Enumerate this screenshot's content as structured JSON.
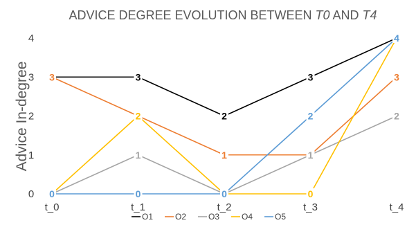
{
  "chart_data": {
    "type": "line",
    "title_prefix": "ADVICE DEGREE EVOLUTION BETWEEN ",
    "title_t0": "T0",
    "title_and": " AND ",
    "title_t4": "T4",
    "xlabel": "",
    "ylabel": "Advice In-degree",
    "categories": [
      "t_0",
      "t_1",
      "t_2",
      "t_3",
      "t_4"
    ],
    "yticks": [
      "0",
      "1",
      "2",
      "3",
      "4"
    ],
    "ylim": [
      0,
      4
    ],
    "grid": false,
    "legend_position": "bottom",
    "series": [
      {
        "name": "O1",
        "color": "#000000",
        "values": [
          3,
          3,
          2,
          3,
          4
        ],
        "labels": [
          "3",
          "3",
          "2",
          "3",
          ""
        ]
      },
      {
        "name": "O2",
        "color": "#ED7D31",
        "values": [
          3,
          2,
          1,
          1,
          3
        ],
        "labels": [
          "3",
          "",
          "1",
          "",
          "3"
        ]
      },
      {
        "name": "O3",
        "color": "#A5A5A5",
        "values": [
          0,
          1,
          0,
          1,
          2
        ],
        "labels": [
          "",
          "1",
          "",
          "1",
          "2"
        ]
      },
      {
        "name": "O4",
        "color": "#FFC000",
        "values": [
          0,
          2,
          0,
          0,
          4
        ],
        "labels": [
          "",
          "2",
          "",
          "0",
          ""
        ]
      },
      {
        "name": "O5",
        "color": "#5B9BD5",
        "values": [
          0,
          0,
          0,
          2,
          4
        ],
        "labels": [
          "0",
          "0",
          "0",
          "2",
          "4"
        ]
      }
    ]
  }
}
